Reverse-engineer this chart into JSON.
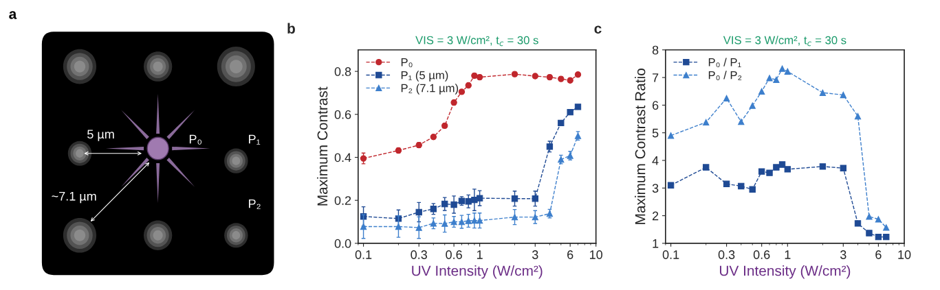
{
  "chart_data": [
    {
      "type": "other",
      "annotations": [
        "a",
        "5 µm",
        "~7.1 µm",
        "P₀",
        "P₁",
        "P₂"
      ]
    },
    {
      "type": "line",
      "title": "VIS = 3 W/cm², t$_{c}$ = 30 s",
      "xlabel": "UV Intensity (W/cm²)",
      "ylabel": "Maximum Contrast",
      "annotations": [
        "b"
      ],
      "x": [
        0.1,
        0.2,
        0.3,
        0.4,
        0.5,
        0.6,
        0.7,
        0.8,
        0.9,
        1,
        2,
        3,
        4,
        5,
        6,
        7
      ],
      "log": "x",
      "xlim": [
        0.09,
        10
      ],
      "xticks": [
        0.1,
        0.3,
        0.6,
        1,
        3,
        6,
        10
      ],
      "ylim": [
        0,
        0.9
      ],
      "yticks": [
        {
          "value": 0,
          "label": "0.0"
        },
        {
          "value": 0.2,
          "label": "0.2"
        },
        {
          "value": 0.4,
          "label": "0.4"
        },
        {
          "value": 0.6,
          "label": "0.6"
        },
        {
          "value": 0.8,
          "label": "0.8"
        }
      ],
      "grid": false,
      "legend": "top left",
      "line_style": "dashed",
      "series": [
        {
          "name": "P₀",
          "color": "#c0272d",
          "marker": "circle",
          "values": [
            0.395,
            0.432,
            0.457,
            0.495,
            0.547,
            0.655,
            0.705,
            0.735,
            0.78,
            0.773,
            0.787,
            0.778,
            0.773,
            0.765,
            0.758,
            0.785
          ],
          "errors": [
            0.025,
            0.012,
            0.012,
            0.01,
            0.01,
            0.01,
            0.01,
            0.01,
            0.01,
            0.01,
            0.01,
            0.01,
            0.01,
            0.01,
            0.01,
            0.01
          ]
        },
        {
          "name": "P₁ (5 µm)",
          "color": "#1f4a94",
          "marker": "square",
          "values": [
            0.125,
            0.115,
            0.145,
            0.16,
            0.183,
            0.18,
            0.197,
            0.195,
            0.202,
            0.21,
            0.208,
            0.208,
            0.45,
            0.56,
            0.61,
            0.635
          ],
          "errors": [
            0.045,
            0.04,
            0.045,
            0.025,
            0.03,
            0.04,
            0.02,
            0.03,
            0.05,
            0.035,
            0.035,
            0.035,
            0.025,
            0.01,
            0.01,
            0.01
          ]
        },
        {
          "name": "P₂ (7.1 µm)",
          "color": "#3d7fcc",
          "marker": "triangle",
          "values": [
            0.078,
            0.078,
            0.073,
            0.093,
            0.092,
            0.1,
            0.1,
            0.105,
            0.106,
            0.106,
            0.122,
            0.122,
            0.138,
            0.39,
            0.408,
            0.5
          ],
          "errors": [
            0.055,
            0.05,
            0.05,
            0.025,
            0.04,
            0.025,
            0.03,
            0.03,
            0.035,
            0.035,
            0.035,
            0.03,
            0.02,
            0.02,
            0.02,
            0.02
          ]
        }
      ]
    },
    {
      "type": "line",
      "title": "VIS = 3 W/cm², t$_{c}$ = 30 s",
      "xlabel": "UV Intensity (W/cm²)",
      "ylabel": "Maximum Contrast Ratio",
      "annotations": [
        "c"
      ],
      "x": [
        0.1,
        0.2,
        0.3,
        0.4,
        0.5,
        0.6,
        0.7,
        0.8,
        0.9,
        1,
        2,
        3,
        4,
        5,
        6,
        7
      ],
      "log": "x",
      "xlim": [
        0.09,
        10
      ],
      "xticks": [
        0.1,
        0.3,
        0.6,
        1,
        3,
        6,
        10
      ],
      "ylim": [
        1,
        8
      ],
      "yticks": [
        1,
        2,
        3,
        4,
        5,
        6,
        7,
        8
      ],
      "grid": false,
      "legend": "top left",
      "line_style": "dashed",
      "series": [
        {
          "name": "P₀ / P₁",
          "color": "#1f4a94",
          "marker": "square",
          "values": [
            3.1,
            3.75,
            3.15,
            3.07,
            2.95,
            3.6,
            3.55,
            3.75,
            3.85,
            3.68,
            3.78,
            3.72,
            1.72,
            1.37,
            1.23,
            1.23
          ]
        },
        {
          "name": "P₀ / P₂",
          "color": "#3d7fcc",
          "marker": "triangle",
          "values": [
            4.9,
            5.38,
            6.25,
            5.4,
            5.98,
            6.5,
            6.98,
            6.92,
            7.32,
            7.22,
            6.45,
            6.37,
            5.6,
            1.97,
            1.87,
            1.57
          ]
        }
      ]
    }
  ]
}
